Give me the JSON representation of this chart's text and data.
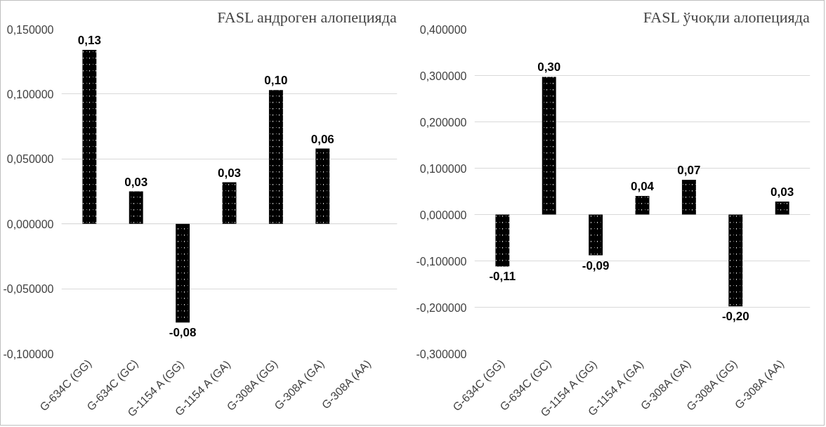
{
  "chart_data": [
    {
      "type": "bar",
      "title": "FASL андроген алопецияда",
      "categories": [
        "G-634C (GG)",
        "G-634C (GC)",
        "G-1154 A (GG)",
        "G-1154 A (GA)",
        "G-308A (GG)",
        "G-308A (GA)",
        "G-308A (AA)"
      ],
      "series": [
        {
          "color": "#000000",
          "values": [
            0.134,
            0.025,
            -0.076,
            0.032,
            0.103,
            0.058,
            null
          ],
          "value_labels": [
            "0,13",
            "0,03",
            "-0,08",
            "0,03",
            "0,10",
            "0,06",
            null
          ]
        }
      ],
      "ylim": [
        -0.1,
        0.15
      ],
      "yticks": [
        {
          "value": -0.1,
          "label": "-0,100000"
        },
        {
          "value": -0.05,
          "label": "-0,050000"
        },
        {
          "value": 0,
          "label": "0,000000"
        },
        {
          "value": 0.05,
          "label": "0,050000"
        },
        {
          "value": 0.1,
          "label": "0,100000"
        },
        {
          "value": 0.15,
          "label": "0,150000"
        }
      ],
      "grid": "y"
    },
    {
      "type": "bar",
      "title": "FASL ўчоқли алопецияда",
      "categories": [
        "G-634C (GG)",
        "G-634C (GC)",
        "G-1154 A (GG)",
        "G-1154 A (GA)",
        "G-308A (GA)",
        "G-308A (GG)",
        "G-308A (AA)"
      ],
      "series": [
        {
          "color": "#000000",
          "values": [
            -0.112,
            0.297,
            -0.088,
            0.04,
            0.075,
            -0.198,
            0.028
          ],
          "value_labels": [
            "-0,11",
            "0,30",
            "-0,09",
            "0,04",
            "0,07",
            "-0,20",
            "0,03"
          ]
        }
      ],
      "ylim": [
        -0.3,
        0.4
      ],
      "yticks": [
        {
          "value": -0.3,
          "label": "-0,300000"
        },
        {
          "value": -0.2,
          "label": "-0,200000"
        },
        {
          "value": -0.1,
          "label": "-0,100000"
        },
        {
          "value": 0,
          "label": "0,000000"
        },
        {
          "value": 0.1,
          "label": "0,100000"
        },
        {
          "value": 0.2,
          "label": "0,200000"
        },
        {
          "value": 0.3,
          "label": "0,300000"
        },
        {
          "value": 0.4,
          "label": "0,400000"
        }
      ],
      "grid": "y"
    }
  ]
}
